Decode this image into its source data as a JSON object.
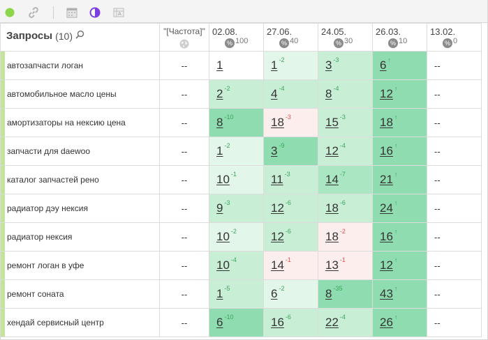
{
  "toolbar": {
    "icons": [
      "green-dot-icon",
      "link-icon",
      "calendar-icon",
      "contrast-icon",
      "table-export-icon"
    ]
  },
  "header": {
    "queries_label": "Запросы",
    "queries_count": "(10)",
    "frequency_label": "\"[Частота]\"",
    "dates": [
      {
        "date": "02.08.",
        "visibility": "100"
      },
      {
        "date": "27.06.",
        "visibility": "40"
      },
      {
        "date": "24.05.",
        "visibility": "30"
      },
      {
        "date": "26.03.",
        "visibility": "10"
      },
      {
        "date": "13.02.",
        "visibility": "0"
      }
    ]
  },
  "pct_symbol": "%",
  "empty_value": "--",
  "colors": {
    "white": "#ffffff",
    "light_green": "#e3f6ea",
    "green": "#c8eed6",
    "mid_green": "#aae6c2",
    "strong_green": "#8edcaf",
    "light_red": "#fdeeee",
    "query_marker": "#c3e49a"
  },
  "rows": [
    {
      "query": "автозапчасти логан",
      "frequency": "--",
      "cells": [
        {
          "pos": "1",
          "delta": "",
          "dir": "",
          "shade": "c0"
        },
        {
          "pos": "1",
          "delta": "-2",
          "dir": "up",
          "shade": "c1"
        },
        {
          "pos": "3",
          "delta": "-3",
          "dir": "up",
          "shade": "c2"
        },
        {
          "pos": "6",
          "delta": "↑",
          "dir": "up",
          "shade": "c4"
        },
        {
          "pos": "--",
          "delta": "",
          "dir": "",
          "shade": "c0"
        }
      ]
    },
    {
      "query": "автомобильное масло цены",
      "frequency": "--",
      "cells": [
        {
          "pos": "2",
          "delta": "-2",
          "dir": "up",
          "shade": "c2"
        },
        {
          "pos": "4",
          "delta": "-4",
          "dir": "up",
          "shade": "c2"
        },
        {
          "pos": "8",
          "delta": "-4",
          "dir": "up",
          "shade": "c2"
        },
        {
          "pos": "12",
          "delta": "↑",
          "dir": "up",
          "shade": "c4"
        },
        {
          "pos": "--",
          "delta": "",
          "dir": "",
          "shade": "c0"
        }
      ]
    },
    {
      "query": "амортизаторы на нексию цена",
      "frequency": "--",
      "cells": [
        {
          "pos": "8",
          "delta": "-10",
          "dir": "up",
          "shade": "c4"
        },
        {
          "pos": "18",
          "delta": "-3",
          "dir": "down",
          "shade": "cr"
        },
        {
          "pos": "15",
          "delta": "-3",
          "dir": "up",
          "shade": "c2"
        },
        {
          "pos": "18",
          "delta": "↑",
          "dir": "up",
          "shade": "c4"
        },
        {
          "pos": "--",
          "delta": "",
          "dir": "",
          "shade": "c0"
        }
      ]
    },
    {
      "query": "запчасти для daewoo",
      "frequency": "--",
      "cells": [
        {
          "pos": "1",
          "delta": "-2",
          "dir": "up",
          "shade": "c1"
        },
        {
          "pos": "3",
          "delta": "-9",
          "dir": "up",
          "shade": "c4"
        },
        {
          "pos": "12",
          "delta": "-4",
          "dir": "up",
          "shade": "c2"
        },
        {
          "pos": "16",
          "delta": "↑",
          "dir": "up",
          "shade": "c4"
        },
        {
          "pos": "--",
          "delta": "",
          "dir": "",
          "shade": "c0"
        }
      ]
    },
    {
      "query": "каталог запчастей рено",
      "frequency": "--",
      "cells": [
        {
          "pos": "10",
          "delta": "-1",
          "dir": "up",
          "shade": "c1"
        },
        {
          "pos": "11",
          "delta": "-3",
          "dir": "up",
          "shade": "c2"
        },
        {
          "pos": "14",
          "delta": "-7",
          "dir": "up",
          "shade": "c3"
        },
        {
          "pos": "21",
          "delta": "↑",
          "dir": "up",
          "shade": "c4"
        },
        {
          "pos": "--",
          "delta": "",
          "dir": "",
          "shade": "c0"
        }
      ]
    },
    {
      "query": "радиатор дэу нексия",
      "frequency": "--",
      "cells": [
        {
          "pos": "9",
          "delta": "-3",
          "dir": "up",
          "shade": "c2"
        },
        {
          "pos": "12",
          "delta": "-6",
          "dir": "up",
          "shade": "c2"
        },
        {
          "pos": "18",
          "delta": "-6",
          "dir": "up",
          "shade": "c2"
        },
        {
          "pos": "24",
          "delta": "↑",
          "dir": "up",
          "shade": "c4"
        },
        {
          "pos": "--",
          "delta": "",
          "dir": "",
          "shade": "c0"
        }
      ]
    },
    {
      "query": "радиатор нексия",
      "frequency": "--",
      "cells": [
        {
          "pos": "10",
          "delta": "-2",
          "dir": "up",
          "shade": "c1"
        },
        {
          "pos": "12",
          "delta": "-6",
          "dir": "up",
          "shade": "c2"
        },
        {
          "pos": "18",
          "delta": "-2",
          "dir": "down",
          "shade": "cr"
        },
        {
          "pos": "16",
          "delta": "↑",
          "dir": "up",
          "shade": "c4"
        },
        {
          "pos": "--",
          "delta": "",
          "dir": "",
          "shade": "c0"
        }
      ]
    },
    {
      "query": "ремонт логан в уфе",
      "frequency": "--",
      "cells": [
        {
          "pos": "10",
          "delta": "-4",
          "dir": "up",
          "shade": "c2"
        },
        {
          "pos": "14",
          "delta": "-1",
          "dir": "down",
          "shade": "cr"
        },
        {
          "pos": "13",
          "delta": "-1",
          "dir": "down",
          "shade": "cr"
        },
        {
          "pos": "12",
          "delta": "↑",
          "dir": "up",
          "shade": "c4"
        },
        {
          "pos": "--",
          "delta": "",
          "dir": "",
          "shade": "c0"
        }
      ]
    },
    {
      "query": "ремонт соната",
      "frequency": "--",
      "cells": [
        {
          "pos": "1",
          "delta": "-5",
          "dir": "up",
          "shade": "c2"
        },
        {
          "pos": "6",
          "delta": "-2",
          "dir": "up",
          "shade": "c1"
        },
        {
          "pos": "8",
          "delta": "-35",
          "dir": "up",
          "shade": "c4"
        },
        {
          "pos": "43",
          "delta": "↑",
          "dir": "up",
          "shade": "c4"
        },
        {
          "pos": "--",
          "delta": "",
          "dir": "",
          "shade": "c0"
        }
      ]
    },
    {
      "query": "хендай сервисный центр",
      "frequency": "--",
      "cells": [
        {
          "pos": "6",
          "delta": "-10",
          "dir": "up",
          "shade": "c4"
        },
        {
          "pos": "16",
          "delta": "-6",
          "dir": "up",
          "shade": "c2"
        },
        {
          "pos": "22",
          "delta": "-4",
          "dir": "up",
          "shade": "c2"
        },
        {
          "pos": "26",
          "delta": "↑",
          "dir": "up",
          "shade": "c4"
        },
        {
          "pos": "--",
          "delta": "",
          "dir": "",
          "shade": "c0"
        }
      ]
    }
  ]
}
